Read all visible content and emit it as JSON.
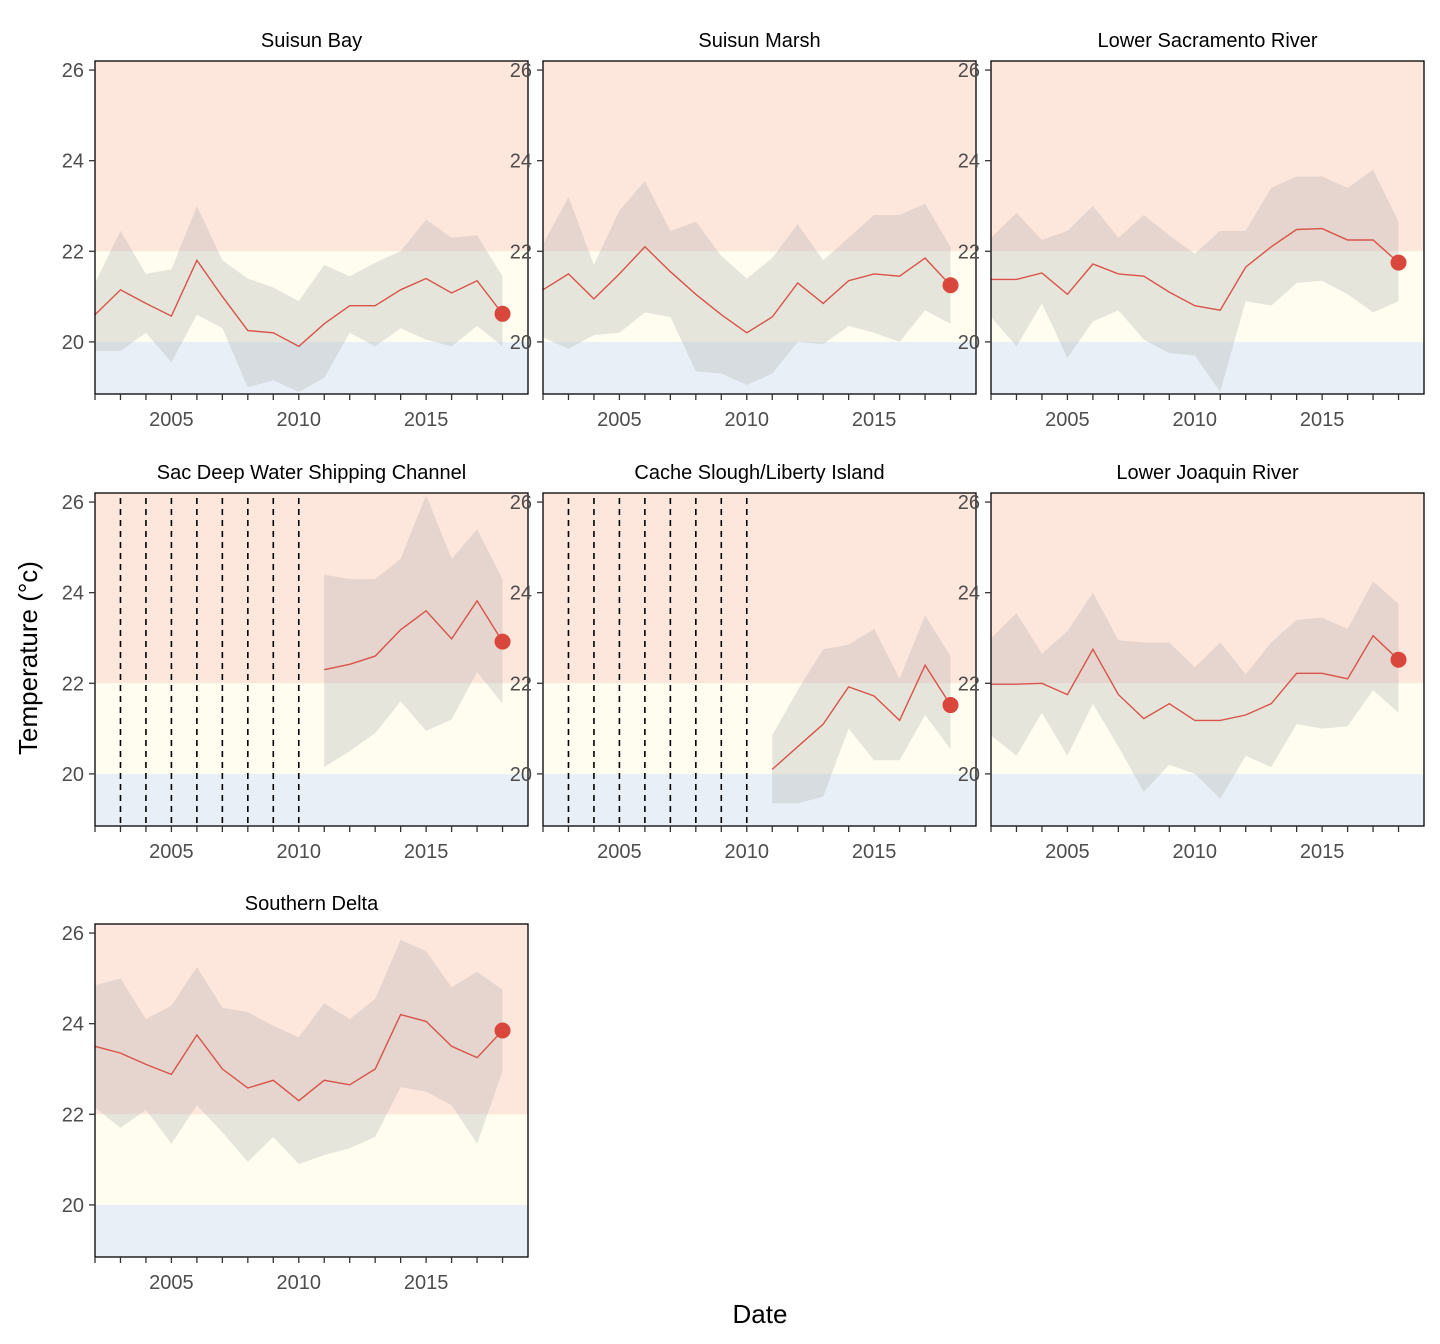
{
  "chart_data": {
    "type": "line",
    "xlabel": "Date",
    "ylabel": "Temperature (°c)",
    "xlim": [
      2002,
      2019
    ],
    "ylim": [
      18.85,
      26.2
    ],
    "x_ticks": [
      2005,
      2010,
      2015
    ],
    "x_minor_ticks": [
      2002,
      2003,
      2004,
      2005,
      2006,
      2007,
      2008,
      2009,
      2010,
      2011,
      2012,
      2013,
      2014,
      2015,
      2016,
      2017,
      2018
    ],
    "y_ticks": [
      20,
      22,
      24,
      26
    ],
    "background_bands": [
      {
        "from": 18.85,
        "to": 20,
        "color": "#e8eff7"
      },
      {
        "from": 20,
        "to": 22,
        "color": "#fefdf0"
      },
      {
        "from": 22,
        "to": 26.2,
        "color": "#fde6dc"
      }
    ],
    "colors": {
      "line": "#d9534a",
      "point": "#d9473c",
      "ribbon": "#b0aeae"
    },
    "grid": false,
    "panels": [
      {
        "title": "Suisun Bay",
        "x": [
          2002,
          2003,
          2004,
          2005,
          2006,
          2007,
          2008,
          2009,
          2010,
          2011,
          2012,
          2013,
          2014,
          2015,
          2016,
          2017,
          2018
        ],
        "mean": [
          20.6,
          21.15,
          20.85,
          20.57,
          21.8,
          21.0,
          20.25,
          20.2,
          19.9,
          20.4,
          20.8,
          20.8,
          21.15,
          21.4,
          21.08,
          21.35,
          20.62
        ],
        "upper": [
          21.3,
          22.45,
          21.5,
          21.6,
          23.0,
          21.8,
          21.4,
          21.2,
          20.9,
          21.7,
          21.45,
          21.75,
          22.0,
          22.7,
          22.3,
          22.35,
          21.45
        ],
        "lower": [
          19.8,
          19.8,
          20.2,
          19.55,
          20.6,
          20.3,
          19.0,
          19.15,
          18.9,
          19.2,
          20.2,
          19.9,
          20.3,
          20.05,
          19.9,
          20.35,
          19.9
        ],
        "highlight": {
          "x": 2018,
          "y": 20.62
        },
        "missing_years": []
      },
      {
        "title": "Suisun Marsh",
        "x": [
          2002,
          2003,
          2004,
          2005,
          2006,
          2007,
          2008,
          2009,
          2010,
          2011,
          2012,
          2013,
          2014,
          2015,
          2016,
          2017,
          2018
        ],
        "mean": [
          21.15,
          21.5,
          20.95,
          21.5,
          22.1,
          21.55,
          21.05,
          20.6,
          20.2,
          20.55,
          21.3,
          20.85,
          21.35,
          21.5,
          21.45,
          21.85,
          21.25
        ],
        "upper": [
          22.15,
          23.2,
          21.7,
          22.9,
          23.55,
          22.45,
          22.65,
          21.9,
          21.4,
          21.85,
          22.6,
          21.8,
          22.3,
          22.8,
          22.8,
          23.05,
          22.1
        ],
        "lower": [
          20.1,
          19.85,
          20.15,
          20.2,
          20.65,
          20.55,
          19.35,
          19.3,
          19.05,
          19.3,
          20.0,
          19.95,
          20.35,
          20.2,
          20.0,
          20.7,
          20.4
        ],
        "highlight": {
          "x": 2018,
          "y": 21.25
        },
        "missing_years": []
      },
      {
        "title": "Lower Sacramento River",
        "x": [
          2002,
          2003,
          2004,
          2005,
          2006,
          2007,
          2008,
          2009,
          2010,
          2011,
          2012,
          2013,
          2014,
          2015,
          2016,
          2017,
          2018
        ],
        "mean": [
          21.38,
          21.38,
          21.52,
          21.05,
          21.72,
          21.5,
          21.45,
          21.1,
          20.8,
          20.7,
          21.65,
          22.1,
          22.48,
          22.5,
          22.25,
          22.25,
          21.75
        ],
        "upper": [
          22.3,
          22.85,
          22.25,
          22.45,
          23.0,
          22.3,
          22.8,
          22.35,
          21.95,
          22.45,
          22.45,
          23.4,
          23.65,
          23.65,
          23.4,
          23.8,
          22.65
        ],
        "lower": [
          20.55,
          19.9,
          20.85,
          19.65,
          20.45,
          20.7,
          20.05,
          19.75,
          19.7,
          18.9,
          20.9,
          20.8,
          21.3,
          21.35,
          21.05,
          20.65,
          20.9
        ],
        "highlight": {
          "x": 2018,
          "y": 21.75
        },
        "missing_years": []
      },
      {
        "title": "Sac Deep Water Shipping Channel",
        "x": [
          2011,
          2012,
          2013,
          2014,
          2015,
          2016,
          2017,
          2018
        ],
        "mean": [
          22.3,
          22.42,
          22.6,
          23.18,
          23.6,
          22.98,
          23.82,
          22.92
        ],
        "upper": [
          24.4,
          24.3,
          24.3,
          24.75,
          26.15,
          24.75,
          25.4,
          24.3
        ],
        "lower": [
          20.15,
          20.5,
          20.9,
          21.6,
          20.95,
          21.2,
          22.25,
          21.55
        ],
        "highlight": {
          "x": 2018,
          "y": 22.92
        },
        "missing_years": [
          2003,
          2004,
          2005,
          2006,
          2007,
          2008,
          2009,
          2010
        ]
      },
      {
        "title": "Cache Slough/Liberty Island",
        "x": [
          2011,
          2012,
          2013,
          2014,
          2015,
          2016,
          2017,
          2018
        ],
        "mean": [
          20.1,
          20.6,
          21.1,
          21.92,
          21.72,
          21.18,
          22.4,
          21.52
        ],
        "upper": [
          20.85,
          21.85,
          22.75,
          22.85,
          23.2,
          22.1,
          23.5,
          22.6
        ],
        "lower": [
          19.35,
          19.35,
          19.5,
          21.0,
          20.3,
          20.3,
          21.3,
          20.55
        ],
        "highlight": {
          "x": 2018,
          "y": 21.52
        },
        "missing_years": [
          2003,
          2004,
          2005,
          2006,
          2007,
          2008,
          2009,
          2010
        ]
      },
      {
        "title": "Lower Joaquin River",
        "x": [
          2002,
          2003,
          2004,
          2005,
          2006,
          2007,
          2008,
          2009,
          2010,
          2011,
          2012,
          2013,
          2014,
          2015,
          2016,
          2017,
          2018
        ],
        "mean": [
          21.98,
          21.98,
          22.0,
          21.75,
          22.75,
          21.75,
          21.22,
          21.55,
          21.18,
          21.18,
          21.3,
          21.55,
          22.22,
          22.22,
          22.1,
          23.05,
          22.52
        ],
        "upper": [
          23.0,
          23.55,
          22.65,
          23.15,
          24.0,
          22.95,
          22.9,
          22.9,
          22.35,
          22.9,
          22.2,
          22.9,
          23.4,
          23.45,
          23.2,
          24.25,
          23.75
        ],
        "lower": [
          20.85,
          20.4,
          21.35,
          20.4,
          21.55,
          20.6,
          19.6,
          20.2,
          20.0,
          19.45,
          20.4,
          20.15,
          21.1,
          21.0,
          21.05,
          21.85,
          21.35
        ],
        "highlight": {
          "x": 2018,
          "y": 22.52
        },
        "missing_years": []
      },
      {
        "title": "Southern Delta",
        "x": [
          2002,
          2003,
          2004,
          2005,
          2006,
          2007,
          2008,
          2009,
          2010,
          2011,
          2012,
          2013,
          2014,
          2015,
          2016,
          2017,
          2018
        ],
        "mean": [
          23.5,
          23.35,
          23.1,
          22.88,
          23.75,
          23.0,
          22.58,
          22.75,
          22.3,
          22.75,
          22.65,
          23.0,
          24.2,
          24.05,
          23.5,
          23.25,
          23.85
        ],
        "upper": [
          24.85,
          25.0,
          24.1,
          24.4,
          25.25,
          24.35,
          24.25,
          23.95,
          23.7,
          24.45,
          24.1,
          24.55,
          25.85,
          25.6,
          24.8,
          25.15,
          24.75
        ],
        "lower": [
          22.15,
          21.7,
          22.1,
          21.35,
          22.2,
          21.6,
          20.95,
          21.5,
          20.9,
          21.1,
          21.25,
          21.5,
          22.6,
          22.5,
          22.2,
          21.35,
          22.95
        ],
        "highlight": {
          "x": 2018,
          "y": 23.85
        },
        "missing_years": []
      }
    ]
  }
}
